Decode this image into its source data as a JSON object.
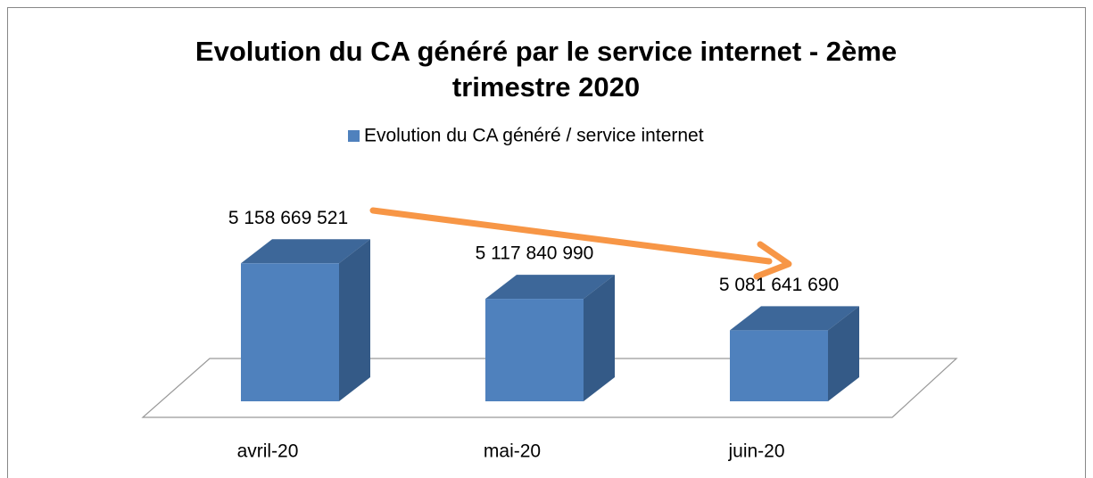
{
  "chart_data": {
    "type": "bar3d",
    "title": "Evolution du CA généré par le  service internet - 2ème trimestre 2020",
    "title_lines": [
      "Evolution du CA généré par le  service internet - 2ème",
      "trimestre 2020"
    ],
    "categories": [
      "avril-20",
      "mai-20",
      "juin-20"
    ],
    "series": [
      {
        "name": "Evolution du CA généré / service internet",
        "color": "#4f81bd",
        "values": [
          5158669521,
          5117840990,
          5081641690
        ],
        "value_labels": [
          "5 158 669 521",
          "5 117 840 990",
          "5 081 641 690"
        ]
      }
    ],
    "ylim": [
      5000000000,
      5200000000
    ],
    "legend": "top"
  }
}
